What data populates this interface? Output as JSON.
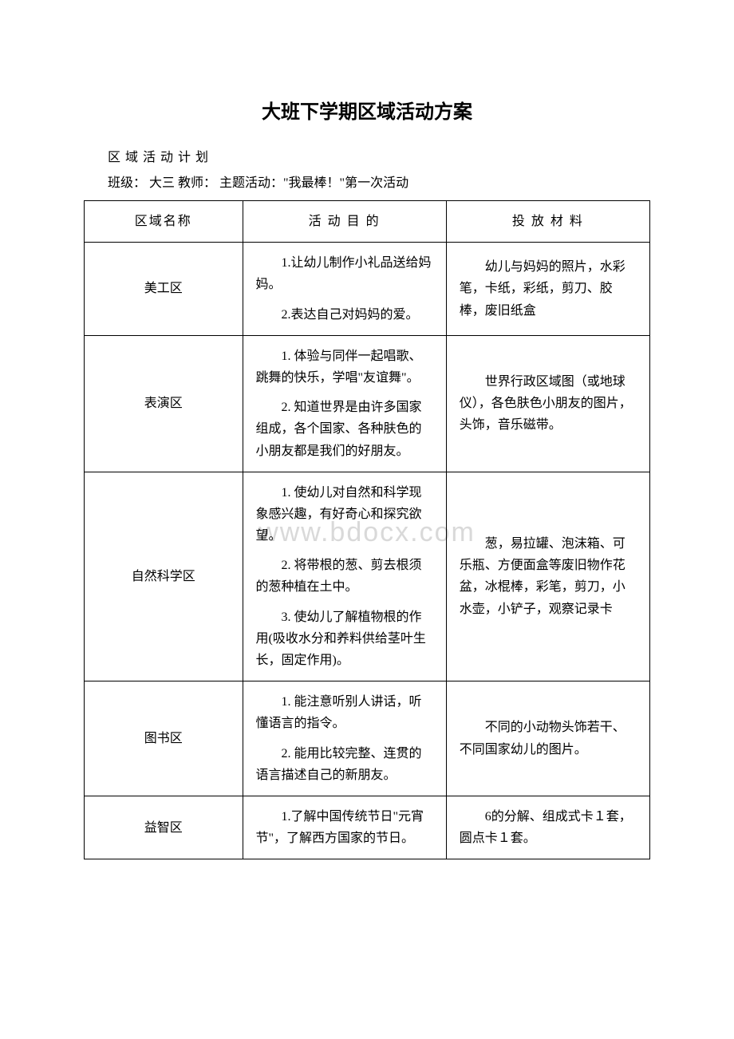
{
  "title": "大班下学期区域活动方案",
  "meta": {
    "line1": "区 域 活 动 计 划",
    "line2": "班级：  大三  教师：   主题活动：\"我最棒！\"第一次活动"
  },
  "watermark": "www.bdocx.com",
  "table": {
    "headers": {
      "c1": "区域名称",
      "c2": "活 动 目 的",
      "c3": "投 放 材 料"
    },
    "rows": [
      {
        "name": "美工区",
        "goals": [
          "1.让幼儿制作小礼品送给妈妈。",
          "2.表达自己对妈妈的爱。"
        ],
        "materials": "幼儿与妈妈的照片，水彩笔，卡纸，彩纸，剪刀、胶棒，废旧纸盒"
      },
      {
        "name": "表演区",
        "goals": [
          "1. 体验与同伴一起唱歌、跳舞的快乐，学唱\"友谊舞\"。",
          "2. 知道世界是由许多国家组成，各个国家、各种肤色的小朋友都是我们的好朋友。"
        ],
        "materials": "世界行政区域图（或地球仪），各色肤色小朋友的图片，头饰，音乐磁带。"
      },
      {
        "name": "自然科学区",
        "goals": [
          "1. 使幼儿对自然和科学现象感兴趣，有好奇心和探究欲望。",
          "2. 将带根的葱、剪去根须的葱种植在土中。",
          "3. 使幼儿了解植物根的作用(吸收水分和养料供给茎叶生长，固定作用)。"
        ],
        "materials": "葱，易拉罐、泡沫箱、可乐瓶、方便面盒等废旧物作花盆，冰棍棒，彩笔，剪刀，小水壶，小铲子，观察记录卡"
      },
      {
        "name": "图书区",
        "goals": [
          "1. 能注意听别人讲话，听懂语言的指令。",
          "2. 能用比较完整、连贯的语言描述自己的新朋友。"
        ],
        "materials": "不同的小动物头饰若干、不同国家幼儿的图片。"
      },
      {
        "name": "益智区",
        "goals": [
          "1.了解中国传统节日\"元宵节\"，了解西方国家的节日。"
        ],
        "materials": "6的分解、组成式卡１套，圆点卡１套。"
      }
    ]
  }
}
